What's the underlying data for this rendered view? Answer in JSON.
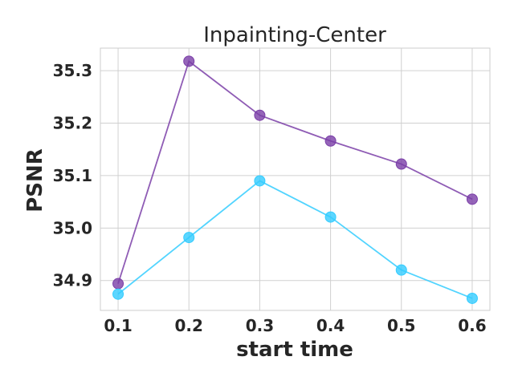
{
  "chart_data": {
    "type": "line",
    "title": "Inpainting-Center",
    "xlabel": "start time",
    "ylabel": "PSNR",
    "x": [
      0.1,
      0.2,
      0.3,
      0.4,
      0.5,
      0.6
    ],
    "x_tick_labels": [
      "0.1",
      "0.2",
      "0.3",
      "0.4",
      "0.5",
      "0.6"
    ],
    "y_ticks": [
      34.9,
      35.0,
      35.1,
      35.2,
      35.3
    ],
    "y_tick_labels": [
      "34.9",
      "35.0",
      "35.1",
      "35.2",
      "35.3"
    ],
    "xlim": [
      0.075,
      0.625
    ],
    "ylim": [
      34.843,
      35.343
    ],
    "grid": true,
    "series": [
      {
        "values": [
          34.894,
          35.318,
          35.215,
          35.166,
          35.122,
          35.055
        ],
        "color": "#7b3fa8"
      },
      {
        "values": [
          34.874,
          34.982,
          35.09,
          35.021,
          34.92,
          34.866
        ],
        "color": "#33ccff"
      }
    ]
  }
}
